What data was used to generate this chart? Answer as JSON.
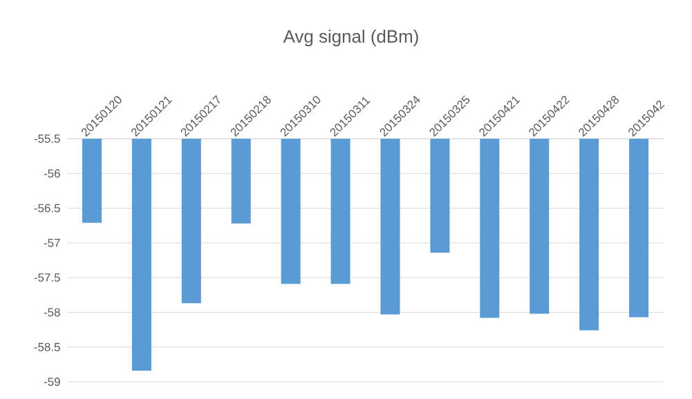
{
  "chart_data": {
    "type": "bar",
    "title": "Avg signal (dBm)",
    "categories": [
      "20150120",
      "20150121",
      "20150217",
      "20150218",
      "20150310",
      "20150311",
      "20150324",
      "20150325",
      "20150421",
      "20150422",
      "20150428",
      "2015042"
    ],
    "values": [
      -56.71,
      -58.84,
      -57.87,
      -56.72,
      -57.59,
      -57.59,
      -58.03,
      -57.14,
      -58.08,
      -58.02,
      -58.26,
      -58.07
    ],
    "color": "#5b9bd5",
    "ylim": [
      -59,
      -55.5
    ],
    "yticks": [
      -55.5,
      -56,
      -56.5,
      -57,
      -57.5,
      -58,
      -58.5,
      -59
    ],
    "grid": "y"
  }
}
